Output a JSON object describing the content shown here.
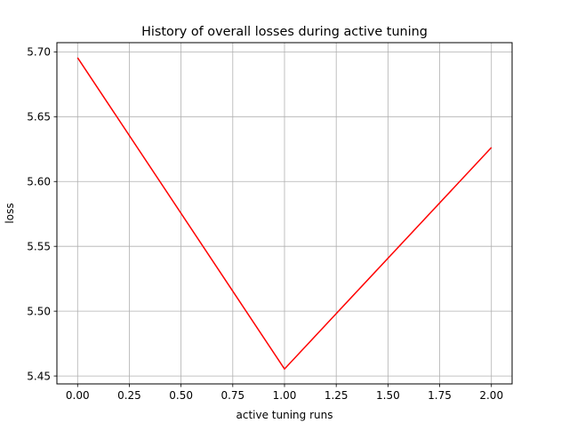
{
  "chart_data": {
    "type": "line",
    "title": "History of overall losses during active tuning",
    "xlabel": "active tuning runs",
    "ylabel": "loss",
    "xlim": [
      -0.1,
      2.1
    ],
    "ylim": [
      5.4439,
      5.7071
    ],
    "x_ticks": [
      0.0,
      0.25,
      0.5,
      0.75,
      1.0,
      1.25,
      1.5,
      1.75,
      2.0
    ],
    "x_tick_labels": [
      "0.00",
      "0.25",
      "0.50",
      "0.75",
      "1.00",
      "1.25",
      "1.50",
      "1.75",
      "2.00"
    ],
    "y_ticks": [
      5.45,
      5.5,
      5.55,
      5.6,
      5.65,
      5.7
    ],
    "y_tick_labels": [
      "5.45",
      "5.50",
      "5.55",
      "5.60",
      "5.65",
      "5.70"
    ],
    "grid": true,
    "series": [
      {
        "color": "#ff0000",
        "x": [
          0,
          1,
          2
        ],
        "y": [
          5.6955,
          5.4554,
          5.6262
        ]
      }
    ]
  }
}
